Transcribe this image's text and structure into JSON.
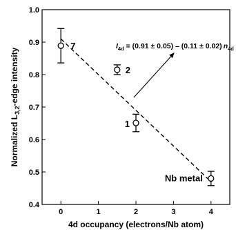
{
  "chart_data": {
    "type": "scatter",
    "xlabel": "4d occupancy (electrons/Nb atom)",
    "ylabel_parts": {
      "main": "Normalized L",
      "sub": "3,2",
      "rest": "-edge intensity"
    },
    "xlim": [
      -0.5,
      4.5
    ],
    "ylim": [
      0.4,
      1.0
    ],
    "x_ticks": [
      0,
      1,
      2,
      3,
      4
    ],
    "y_ticks": [
      0.4,
      0.5,
      0.6,
      0.7,
      0.8,
      0.9,
      1.0
    ],
    "x_tick_labels": [
      "0",
      "1",
      "2",
      "3",
      "4"
    ],
    "y_tick_labels": [
      "0.4",
      "0.5",
      "0.6",
      "0.7",
      "0.8",
      "0.9",
      "1.0"
    ],
    "grid": false,
    "points": [
      {
        "label": "7",
        "x": 0,
        "y": 0.889,
        "err": 0.053
      },
      {
        "label": "2",
        "x": 1.5,
        "y": 0.815,
        "err": 0.015
      },
      {
        "label": "1",
        "x": 2,
        "y": 0.651,
        "err": 0.027
      },
      {
        "label": "Nb metal",
        "x": 4,
        "y": 0.48,
        "err": 0.022
      }
    ],
    "fit": {
      "style": "dashed",
      "intercept": 0.91,
      "slope": -0.11,
      "x_range": [
        0,
        4
      ]
    },
    "annotation": {
      "I": "I",
      "I_sub": "4d",
      "equals_text": " = (0.91 ± 0.05) – (0.11 ± 0.02)",
      "n": "n",
      "n_sub": "4d"
    }
  }
}
